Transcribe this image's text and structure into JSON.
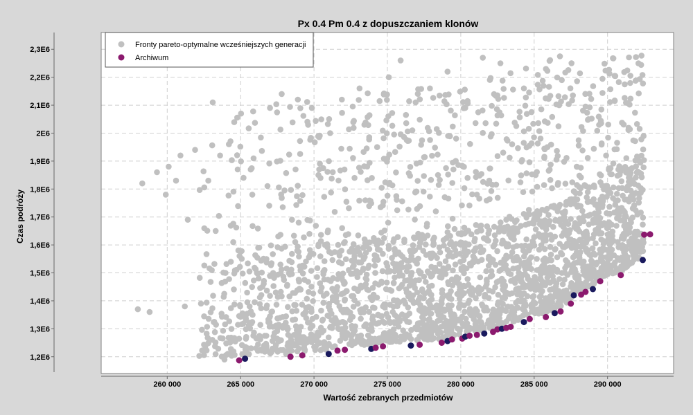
{
  "chart_data": {
    "type": "scatter",
    "title": "Px 0.4 Pm 0.4 z dopuszczaniem klonów",
    "xlabel": "Wartość zebranych przedmiotów",
    "ylabel": "Czas podróży",
    "xlim": [
      255500,
      294500
    ],
    "ylim": [
      1140000,
      2360000
    ],
    "x_ticks": [
      260000,
      265000,
      270000,
      275000,
      280000,
      285000,
      290000
    ],
    "x_tick_labels": [
      "260 000",
      "265 000",
      "270 000",
      "275 000",
      "280 000",
      "285 000",
      "290 000"
    ],
    "y_ticks": [
      1200000,
      1300000,
      1400000,
      1500000,
      1600000,
      1700000,
      1800000,
      1900000,
      2000000,
      2100000,
      2200000,
      2300000
    ],
    "y_tick_labels": [
      "1,2E6",
      "1,3E6",
      "1,4E6",
      "1,5E6",
      "1,6E6",
      "1,7E6",
      "1,8E6",
      "1,9E6",
      "2E6",
      "2,1E6",
      "2,2E6",
      "2,3E6"
    ],
    "grid": true,
    "legend_position": "top-left",
    "series": [
      {
        "name": "Fronty pareto-optymalne wcześniejszych generacji",
        "color": "#c0c0c0",
        "points": [
          [
            258000,
            1370000
          ],
          [
            258300,
            1820000
          ],
          [
            258800,
            1360000
          ],
          [
            259300,
            1860000
          ],
          [
            259900,
            1780000
          ],
          [
            260100,
            1880000
          ],
          [
            260600,
            1830000
          ],
          [
            260900,
            1920000
          ],
          [
            261200,
            1380000
          ],
          [
            261400,
            1690000
          ],
          [
            261900,
            1940000
          ],
          [
            262300,
            1390000
          ],
          [
            262800,
            1830000
          ],
          [
            263100,
            2110000
          ],
          [
            263300,
            1650000
          ],
          [
            263600,
            1920000
          ],
          [
            263900,
            1190000
          ],
          [
            264200,
            1960000
          ],
          [
            264500,
            1610000
          ],
          [
            264800,
            1870000
          ],
          [
            265200,
            1840000
          ],
          [
            265500,
            1230000
          ],
          [
            265800,
            1780000
          ],
          [
            266200,
            1590000
          ],
          [
            266600,
            1240000
          ],
          [
            267000,
            2090000
          ],
          [
            267400,
            1430000
          ],
          [
            267800,
            2140000
          ],
          [
            268100,
            1210000
          ],
          [
            268500,
            1690000
          ],
          [
            268900,
            2120000
          ],
          [
            269200,
            1270000
          ],
          [
            269600,
            2030000
          ],
          [
            269900,
            1310000
          ],
          [
            270300,
            1850000
          ],
          [
            270700,
            1240000
          ],
          [
            271100,
            2000000
          ],
          [
            271500,
            1410000
          ],
          [
            271900,
            2120000
          ],
          [
            272300,
            1280000
          ],
          [
            272700,
            1540000
          ],
          [
            273100,
            2160000
          ],
          [
            273500,
            1760000
          ],
          [
            273900,
            1260000
          ],
          [
            274300,
            1950000
          ],
          [
            274700,
            1380000
          ],
          [
            275100,
            2200000
          ],
          [
            275500,
            1580000
          ],
          [
            275900,
            2260000
          ],
          [
            276300,
            1280000
          ],
          [
            276700,
            2010000
          ],
          [
            277100,
            1640000
          ],
          [
            277500,
            1310000
          ],
          [
            277900,
            2160000
          ],
          [
            278300,
            1720000
          ],
          [
            278700,
            1390000
          ],
          [
            279100,
            2220000
          ],
          [
            279500,
            1870000
          ],
          [
            279900,
            1460000
          ],
          [
            280300,
            2090000
          ],
          [
            280700,
            1300000
          ],
          [
            281100,
            1780000
          ],
          [
            281500,
            2270000
          ],
          [
            281900,
            1550000
          ],
          [
            282300,
            1330000
          ],
          [
            282700,
            2250000
          ],
          [
            283100,
            1690000
          ],
          [
            283500,
            1960000
          ],
          [
            283900,
            1400000
          ],
          [
            284300,
            2160000
          ],
          [
            284700,
            1590000
          ],
          [
            285100,
            1850000
          ],
          [
            285500,
            1380000
          ],
          [
            285900,
            1950000
          ],
          [
            286300,
            1520000
          ],
          [
            286700,
            2100000
          ],
          [
            287100,
            1720000
          ],
          [
            287500,
            1450000
          ],
          [
            287900,
            1880000
          ],
          [
            288300,
            1600000
          ],
          [
            288700,
            2050000
          ],
          [
            289100,
            1690000
          ],
          [
            289500,
            1570000
          ],
          [
            289900,
            1920000
          ],
          [
            290300,
            1610000
          ],
          [
            290700,
            1700000
          ],
          [
            291100,
            1640000
          ],
          [
            291500,
            1600000
          ],
          [
            291900,
            1630000
          ],
          [
            292300,
            1640000
          ]
        ]
      },
      {
        "name": "Archiwum",
        "color": "#8b1a6e",
        "points": [
          [
            264900,
            1187000
          ],
          [
            265300,
            1193000
          ],
          [
            268400,
            1200000
          ],
          [
            269200,
            1205000
          ],
          [
            271000,
            1210000
          ],
          [
            271600,
            1222000
          ],
          [
            272100,
            1225000
          ],
          [
            273900,
            1228000
          ],
          [
            274200,
            1232000
          ],
          [
            274700,
            1237000
          ],
          [
            276600,
            1240000
          ],
          [
            277200,
            1243000
          ],
          [
            278700,
            1250000
          ],
          [
            279100,
            1256000
          ],
          [
            279400,
            1262000
          ],
          [
            280100,
            1265000
          ],
          [
            280300,
            1272000
          ],
          [
            280600,
            1275000
          ],
          [
            281100,
            1278000
          ],
          [
            281600,
            1283000
          ],
          [
            282200,
            1289000
          ],
          [
            282500,
            1298000
          ],
          [
            282800,
            1300000
          ],
          [
            283100,
            1303000
          ],
          [
            283400,
            1307000
          ],
          [
            284300,
            1324000
          ],
          [
            284700,
            1335000
          ],
          [
            285800,
            1342000
          ],
          [
            286400,
            1356000
          ],
          [
            286800,
            1362000
          ],
          [
            287500,
            1390000
          ],
          [
            287700,
            1420000
          ],
          [
            288200,
            1422000
          ],
          [
            288500,
            1432000
          ],
          [
            289000,
            1442000
          ],
          [
            289500,
            1470000
          ],
          [
            290900,
            1492000
          ],
          [
            292400,
            1546000
          ],
          [
            292500,
            1637000
          ],
          [
            292900,
            1638000
          ]
        ]
      }
    ]
  }
}
